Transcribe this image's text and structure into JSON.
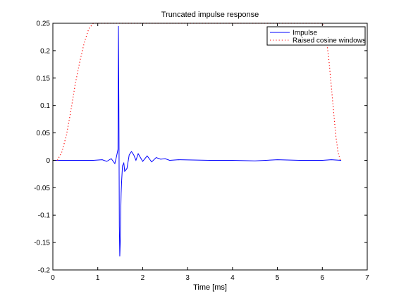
{
  "chart_data": {
    "type": "line",
    "title": "Truncated impulse response",
    "xlabel": "Time [ms]",
    "ylabel": "",
    "xlim": [
      0,
      7
    ],
    "ylim": [
      -0.2,
      0.25
    ],
    "xticks": [
      0,
      1,
      2,
      3,
      4,
      5,
      6,
      7
    ],
    "xtick_labels": [
      "0",
      "1",
      "2",
      "3",
      "4",
      "5",
      "6",
      "7"
    ],
    "yticks": [
      -0.2,
      -0.15,
      -0.1,
      -0.05,
      0,
      0.05,
      0.1,
      0.15,
      0.2,
      0.25
    ],
    "ytick_labels": [
      "-0.2",
      "-0.15",
      "-0.1",
      "-0.05",
      "0",
      "0.05",
      "0.1",
      "0.15",
      "0.2",
      "0.25"
    ],
    "grid": false,
    "legend_position": "top-right",
    "series": [
      {
        "name": "Impulse",
        "style": "solid",
        "color": "#0000ff",
        "x": [
          0,
          0.3,
          0.6,
          0.9,
          1.1,
          1.2,
          1.3,
          1.38,
          1.42,
          1.45,
          1.46,
          1.47,
          1.48,
          1.49,
          1.5,
          1.51,
          1.52,
          1.53,
          1.55,
          1.58,
          1.6,
          1.65,
          1.7,
          1.75,
          1.8,
          1.85,
          1.9,
          2.0,
          2.1,
          2.2,
          2.3,
          2.4,
          2.5,
          2.6,
          2.8,
          3.5,
          4.0,
          4.5,
          5.0,
          5.5,
          6.0,
          6.2,
          6.42
        ],
        "y": [
          0,
          0,
          0,
          0,
          0.001,
          -0.002,
          0.003,
          -0.006,
          0.008,
          0.02,
          0.245,
          0.1,
          -0.12,
          -0.175,
          -0.15,
          -0.1,
          -0.06,
          -0.04,
          -0.01,
          -0.005,
          -0.02,
          -0.015,
          0.01,
          0.016,
          0.01,
          0.0,
          0.012,
          -0.002,
          0.008,
          -0.003,
          0.005,
          0.002,
          0.003,
          0.0,
          0.001,
          0,
          0,
          -0.001,
          0.001,
          0.0,
          0.0,
          0.001,
          0
        ]
      },
      {
        "name": "Raised cosine windows",
        "style": "dotted",
        "color": "#ff0000",
        "x": [
          0.1,
          0.2,
          0.3,
          0.4,
          0.5,
          0.6,
          0.7,
          0.8,
          0.9,
          1.0,
          6.0,
          6.05,
          6.1,
          6.15,
          6.2,
          6.25,
          6.3,
          6.35,
          6.4
        ],
        "y": [
          0.0,
          0.015,
          0.045,
          0.09,
          0.14,
          0.18,
          0.215,
          0.24,
          0.25,
          0.25,
          0.25,
          0.24,
          0.215,
          0.18,
          0.135,
          0.09,
          0.045,
          0.015,
          0.0
        ]
      }
    ]
  }
}
